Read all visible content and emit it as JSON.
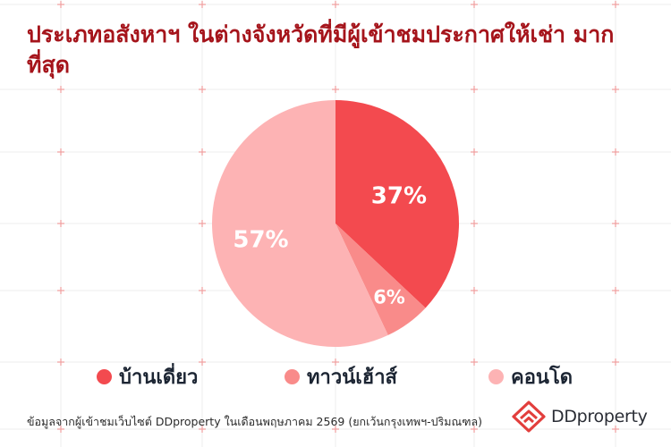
{
  "title": "ประเภทอสังหาฯ ในต่างจังหวัดที่มีผู้เข้าชมประกาศให้เช่า มากที่สุด",
  "chart_data": {
    "type": "pie",
    "categories": [
      "บ้านเดี่ยว",
      "ทาวน์เฮ้าส์",
      "คอนโด"
    ],
    "values": [
      37,
      6,
      57
    ],
    "unit": "%",
    "colors": [
      "#f34a4f",
      "#f98b8a",
      "#fdb3b4"
    ],
    "legend_position": "bottom",
    "labels": [
      "37%",
      "6%",
      "57%"
    ]
  },
  "legend": {
    "items": [
      {
        "label": "บ้านเดี่ยว",
        "color": "#f34a4f"
      },
      {
        "label": "ทาวน์เฮ้าส์",
        "color": "#f98b8a"
      },
      {
        "label": "คอนโด",
        "color": "#fdb3b4"
      }
    ]
  },
  "footnote": "ข้อมูลจากผู้เข้าชมเว็บไซต์ DDproperty ในเดือนพฤษภาคม 2569 (ยกเว้นกรุงเทพฯ-ปริมณฑล)",
  "brand": {
    "name": "DDproperty",
    "logo_icon": "ddproperty-logo-icon",
    "logo_color": "#e23e3c"
  },
  "background": {
    "grid_color": "#ececec",
    "cross_color": "#f0a0a0"
  }
}
